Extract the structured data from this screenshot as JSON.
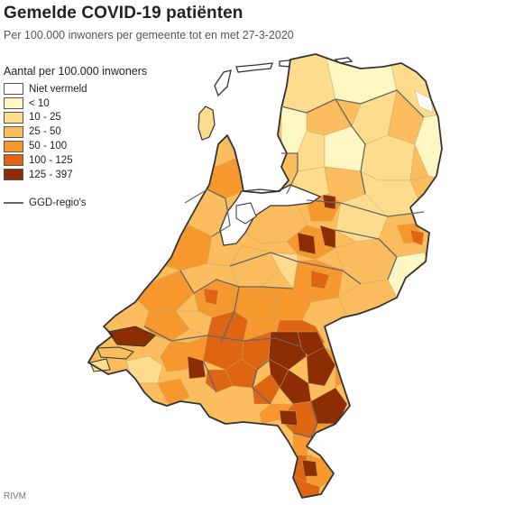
{
  "title": "Gemelde COVID-19 patiënten",
  "subtitle": "Per 100.000 inwoners per gemeente tot en met 27-3-2020",
  "legend": {
    "title": "Aantal per 100.000 inwoners",
    "items": [
      {
        "label": "Niet vermeld",
        "color": "#ffffff"
      },
      {
        "label": "< 10",
        "color": "#fff7c2"
      },
      {
        "label": "10 - 25",
        "color": "#fddc8e"
      },
      {
        "label": "25 - 50",
        "color": "#fbbd5d"
      },
      {
        "label": "50 - 100",
        "color": "#f7982f"
      },
      {
        "label": "100 - 125",
        "color": "#de6512"
      },
      {
        "label": "125 - 397",
        "color": "#8c2d04"
      }
    ],
    "ggd_label": "GGD-regio's",
    "ggd_color": "#666666"
  },
  "source": "RIVM"
}
